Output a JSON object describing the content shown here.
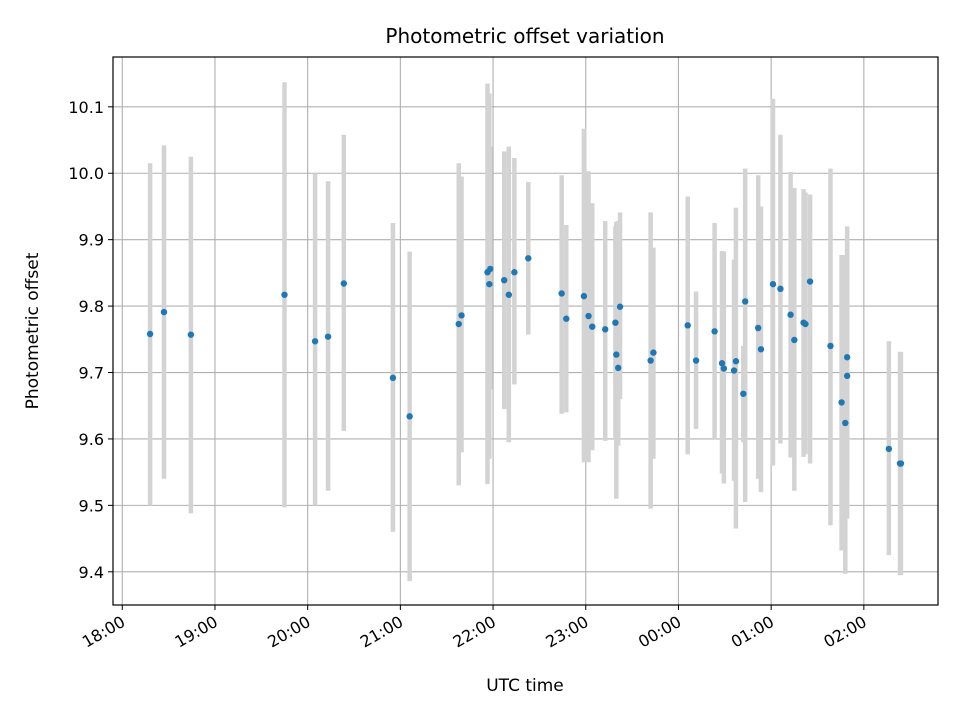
{
  "chart_data": {
    "type": "scatter",
    "title": "Photometric offset variation",
    "xlabel": "UTC time",
    "ylabel": "Photometric offset",
    "x_unit": "UTC hours (values past 24 fall on the next day)",
    "xlim": [
      17.9,
      26.8
    ],
    "ylim": [
      9.35,
      10.175
    ],
    "x_tick_values": [
      18,
      19,
      20,
      21,
      22,
      23,
      24,
      25,
      26
    ],
    "x_tick_labels": [
      "18:00",
      "19:00",
      "20:00",
      "21:00",
      "22:00",
      "23:00",
      "00:00",
      "01:00",
      "02:00"
    ],
    "y_tick_values": [
      9.4,
      9.5,
      9.6,
      9.7,
      9.8,
      9.9,
      10.0,
      10.1
    ],
    "y_tick_labels": [
      "9.4",
      "9.5",
      "9.6",
      "9.7",
      "9.8",
      "9.9",
      "10.0",
      "10.1"
    ],
    "grid": true,
    "colors": {
      "point": "#1f77b4",
      "errorbar": "#d3d3d3",
      "grid": "#b0b0b0",
      "axes": "#000000"
    },
    "series": [
      {
        "x": [
          18.3,
          18.45,
          18.74,
          19.75,
          20.08,
          20.22,
          20.39,
          20.92,
          21.1,
          21.63,
          21.66,
          21.94,
          21.96,
          21.97,
          22.12,
          22.17,
          22.23,
          22.38,
          22.74,
          22.79,
          22.98,
          23.03,
          23.07,
          23.21,
          23.32,
          23.33,
          23.35,
          23.37,
          23.7,
          23.73,
          24.1,
          24.19,
          24.39,
          24.47,
          24.49,
          24.6,
          24.62,
          24.7,
          24.72,
          24.86,
          24.89,
          25.02,
          25.1,
          25.21,
          25.25,
          25.35,
          25.37,
          25.42,
          25.64,
          25.76,
          25.8,
          25.82,
          25.82,
          26.27,
          26.39,
          26.4
        ],
        "y": [
          9.758,
          9.791,
          9.757,
          9.817,
          9.747,
          9.754,
          9.834,
          9.692,
          9.634,
          9.773,
          9.786,
          9.851,
          9.833,
          9.856,
          9.839,
          9.817,
          9.851,
          9.872,
          9.819,
          9.781,
          9.815,
          9.785,
          9.769,
          9.765,
          9.775,
          9.727,
          9.707,
          9.799,
          9.718,
          9.73,
          9.771,
          9.718,
          9.762,
          9.714,
          9.706,
          9.703,
          9.717,
          9.668,
          9.807,
          9.767,
          9.735,
          9.833,
          9.826,
          9.787,
          9.749,
          9.775,
          9.773,
          9.837,
          9.74,
          9.655,
          9.624,
          9.723,
          9.695,
          9.585,
          9.563,
          9.563
        ],
        "ylow": [
          9.5,
          9.54,
          9.488,
          9.497,
          9.5,
          9.522,
          9.612,
          9.46,
          9.386,
          9.53,
          9.58,
          9.532,
          9.57,
          9.675,
          9.645,
          9.595,
          9.682,
          9.757,
          9.638,
          9.64,
          9.565,
          9.565,
          9.583,
          9.597,
          9.6,
          9.51,
          9.59,
          9.66,
          9.495,
          9.57,
          9.577,
          9.615,
          9.6,
          9.548,
          9.533,
          9.537,
          9.465,
          9.595,
          9.505,
          9.54,
          9.52,
          9.56,
          9.593,
          9.572,
          9.522,
          9.573,
          9.577,
          9.563,
          9.47,
          9.432,
          9.397,
          9.53,
          9.48,
          9.425,
          9.395,
          9.395
        ],
        "yhigh": [
          10.015,
          10.042,
          10.025,
          10.137,
          10.0,
          9.988,
          10.058,
          9.925,
          9.882,
          10.015,
          9.995,
          10.135,
          10.12,
          10.04,
          10.033,
          10.04,
          10.023,
          9.987,
          9.997,
          9.922,
          10.067,
          10.003,
          9.955,
          9.928,
          9.92,
          9.927,
          9.928,
          9.941,
          9.941,
          9.888,
          9.965,
          9.822,
          9.925,
          9.883,
          9.882,
          9.87,
          9.948,
          9.74,
          10.007,
          9.997,
          9.95,
          10.112,
          10.058,
          10.002,
          9.978,
          9.976,
          9.971,
          9.968,
          10.007,
          9.877,
          9.877,
          9.92,
          9.897,
          9.747,
          9.731,
          9.731
        ]
      }
    ]
  }
}
